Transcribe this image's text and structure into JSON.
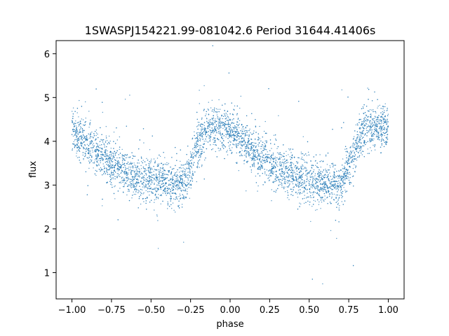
{
  "chart_data": {
    "type": "scatter",
    "title": "1SWASPJ154221.99-081042.6 Period 31644.41406s",
    "xlabel": "phase",
    "ylabel": "flux",
    "xlim": [
      -1.1,
      1.1
    ],
    "ylim": [
      0.4,
      6.3
    ],
    "xticks": [
      -1.0,
      -0.75,
      -0.5,
      -0.25,
      0.0,
      0.25,
      0.5,
      0.75,
      1.0
    ],
    "xtick_labels": [
      "−1.00",
      "−0.75",
      "−0.50",
      "−0.25",
      "0.00",
      "0.25",
      "0.50",
      "0.75",
      "1.00"
    ],
    "yticks": [
      1,
      2,
      3,
      4,
      5,
      6
    ],
    "ytick_labels": [
      "1",
      "2",
      "3",
      "4",
      "5",
      "6"
    ],
    "grid": false,
    "point_color": "#1f77b4",
    "series": [
      {
        "phase_range": [
          -1.0,
          1.0
        ],
        "phase_flux_profile": [
          {
            "phase": 0.0,
            "flux": 4.3
          },
          {
            "phase": 0.1,
            "flux": 3.9
          },
          {
            "phase": 0.25,
            "flux": 3.5
          },
          {
            "phase": 0.4,
            "flux": 3.2
          },
          {
            "phase": 0.6,
            "flux": 3.05
          },
          {
            "phase": 0.7,
            "flux": 3.0
          },
          {
            "phase": 0.75,
            "flux": 3.4
          },
          {
            "phase": 0.8,
            "flux": 4.0
          },
          {
            "phase": 0.87,
            "flux": 4.3
          },
          {
            "phase": 1.0,
            "flux": 4.3
          }
        ],
        "flux_spread": 0.25
      }
    ]
  }
}
